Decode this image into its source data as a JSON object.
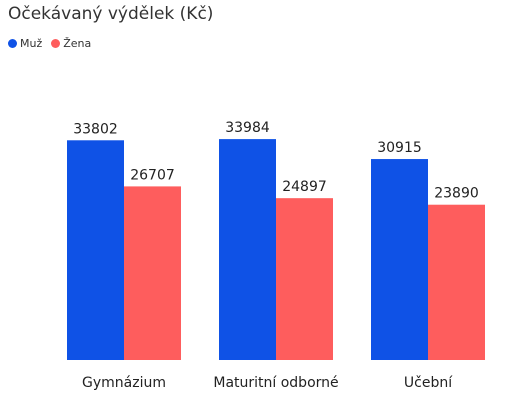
{
  "chart_data": {
    "type": "bar",
    "title": "Očekávaný výdělek (Kč)",
    "categories": [
      "Gymnázium",
      "Maturitní odborné",
      "Učební"
    ],
    "series": [
      {
        "name": "Muž",
        "color": "#0f52e6",
        "values": [
          33802,
          33984,
          30915
        ]
      },
      {
        "name": "Žena",
        "color": "#fe5d5d",
        "values": [
          26707,
          24897,
          23890
        ]
      }
    ],
    "ylim": [
      0,
      40000
    ],
    "grid": false,
    "legend_position": "top-left"
  }
}
